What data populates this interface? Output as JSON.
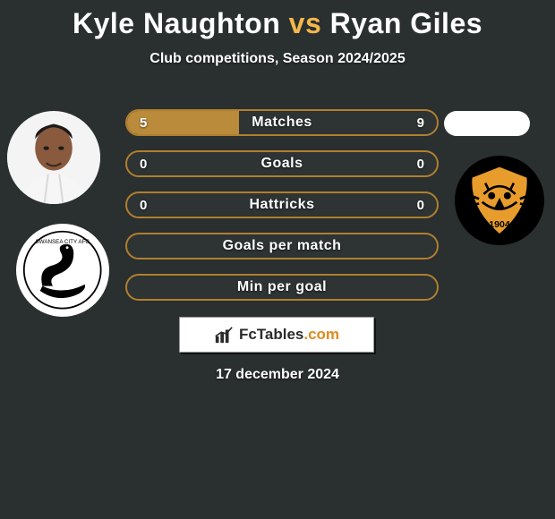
{
  "title": {
    "player_left": "Kyle Naughton",
    "vs": "vs",
    "player_right": "Ryan Giles",
    "color_left": "#ffffff",
    "color_vs": "#f3b84c",
    "color_right": "#ffffff"
  },
  "subtitle": "Club competitions, Season 2024/2025",
  "date": "17 december 2024",
  "bars_layout": {
    "track_bg": "#2e3333",
    "text_color": "#ffffff"
  },
  "bars": [
    {
      "label": "Matches",
      "left": "5",
      "right": "9",
      "left_ratio": 0.36,
      "fill": "#b98b3b",
      "border": "#b07f2f",
      "show_values": true
    },
    {
      "label": "Goals",
      "left": "0",
      "right": "0",
      "left_ratio": 0.0,
      "fill": "#b98b3b",
      "border": "#b07f2f",
      "show_values": true
    },
    {
      "label": "Hattricks",
      "left": "0",
      "right": "0",
      "left_ratio": 0.0,
      "fill": "#b98b3b",
      "border": "#b07f2f",
      "show_values": true
    },
    {
      "label": "Goals per match",
      "left": "",
      "right": "",
      "left_ratio": 0.0,
      "fill": "#b98b3b",
      "border": "#b07f2f",
      "show_values": false
    },
    {
      "label": "Min per goal",
      "left": "",
      "right": "",
      "left_ratio": 0.0,
      "fill": "#b98b3b",
      "border": "#b07f2f",
      "show_values": false
    }
  ],
  "club_left": {
    "name": "Swansea City AFC",
    "text": "SWANSEA CITY AFC",
    "bg": "#ffffff",
    "swan_color": "#000000"
  },
  "club_right": {
    "name": "Hull City",
    "year": "1904",
    "shield_fill": "#e89c2c",
    "shield_stroke": "#000000",
    "bg": "#000000"
  },
  "avatar_left": {
    "name": "Kyle Naughton photo"
  },
  "avatar_right": {
    "name": "Ryan Giles photo placeholder"
  },
  "logo": {
    "text_main": "FcTables",
    "text_suffix": ".com",
    "bars_color": "#2b2b2b"
  }
}
